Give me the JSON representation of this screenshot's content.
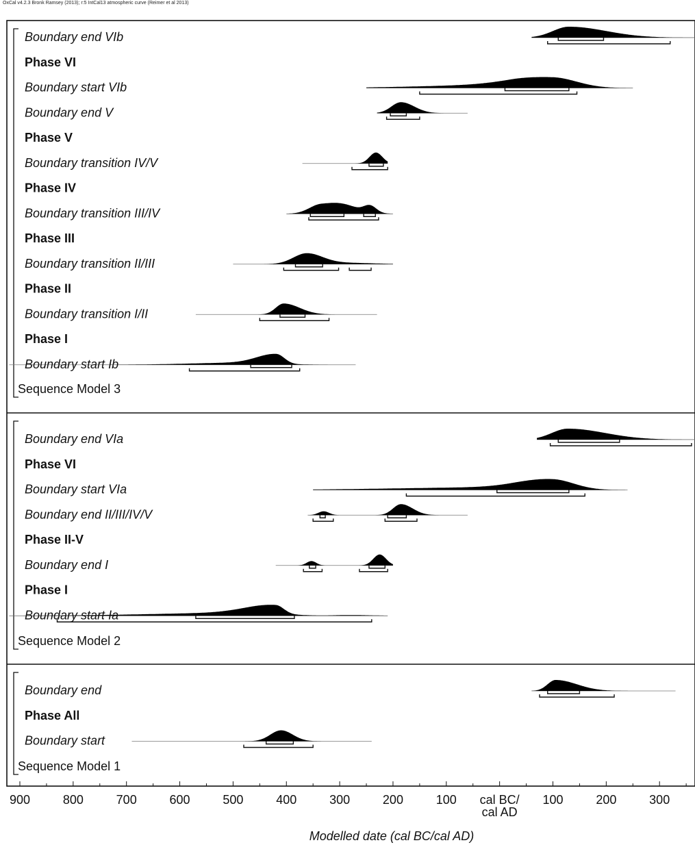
{
  "header_note": "OxCal v4.2.3 Bronk Ramsey (2013); r:5 IntCal13 atmospheric curve (Reimer et al 2013)",
  "chart_data": {
    "type": "ridgeline",
    "xlabel": "Modelled date (cal BC/cal AD)",
    "xlim": [
      -920,
      360
    ],
    "x_ticks": [
      {
        "value": -900,
        "label": "900"
      },
      {
        "value": -800,
        "label": "800"
      },
      {
        "value": -700,
        "label": "700"
      },
      {
        "value": -600,
        "label": "600"
      },
      {
        "value": -500,
        "label": "500"
      },
      {
        "value": -400,
        "label": "400"
      },
      {
        "value": -300,
        "label": "300"
      },
      {
        "value": -200,
        "label": "200"
      },
      {
        "value": -100,
        "label": "100"
      },
      {
        "value": 0,
        "label": "cal BC/\ncal AD"
      },
      {
        "value": 100,
        "label": "100"
      },
      {
        "value": 200,
        "label": "200"
      },
      {
        "value": 300,
        "label": "300"
      }
    ],
    "color": "#000000",
    "models": [
      {
        "name": "Sequence Model 3",
        "rows": [
          {
            "label": "Boundary end VIb",
            "kind": "boundary",
            "dist": {
              "range": [
                60,
                380
              ],
              "peaks": [
                {
                  "mu": 130,
                  "left": 30,
                  "right": 70,
                  "h": 1
                }
              ]
            },
            "hpd68": [
              [
                110,
                195
              ]
            ],
            "hpd95": [
              [
                90,
                320
              ]
            ]
          },
          {
            "label": "Phase VI",
            "kind": "phase"
          },
          {
            "label": "Boundary start VIb",
            "kind": "boundary",
            "dist": {
              "range": [
                -250,
                250
              ],
              "peaks": [
                {
                  "mu": 100,
                  "left": 70,
                  "right": 45,
                  "h": 1
                },
                {
                  "mu": 20,
                  "left": 150,
                  "right": 40,
                  "h": 0.3
                }
              ]
            },
            "hpd68": [
              [
                10,
                130
              ]
            ],
            "hpd95": [
              [
                -150,
                145
              ]
            ]
          },
          {
            "label": "Boundary end V",
            "kind": "boundary",
            "dist": {
              "range": [
                -230,
                -60
              ],
              "peaks": [
                {
                  "mu": -185,
                  "left": 18,
                  "right": 25,
                  "h": 1
                }
              ]
            },
            "hpd68": [
              [
                -205,
                -175
              ]
            ],
            "hpd95": [
              [
                -212,
                -150
              ]
            ]
          },
          {
            "label": "Phase V",
            "kind": "phase"
          },
          {
            "label": "Boundary transition IV/V",
            "kind": "boundary",
            "dist": {
              "range": [
                -370,
                -210
              ],
              "peaks": [
                {
                  "mu": -232,
                  "left": 12,
                  "right": 12,
                  "h": 1
                }
              ]
            },
            "hpd68": [
              [
                -245,
                -218
              ]
            ],
            "hpd95": [
              [
                -277,
                -210
              ]
            ]
          },
          {
            "label": "Phase IV",
            "kind": "phase"
          },
          {
            "label": "Boundary transition III/IV",
            "kind": "boundary",
            "dist": {
              "range": [
                -400,
                -200
              ],
              "peaks": [
                {
                  "mu": -335,
                  "left": 22,
                  "right": 45,
                  "h": 1
                },
                {
                  "mu": -243,
                  "left": 12,
                  "right": 12,
                  "h": 0.75
                },
                {
                  "mu": -290,
                  "left": 25,
                  "right": 25,
                  "h": 0.45
                }
              ]
            },
            "hpd68": [
              [
                -355,
                -292
              ],
              [
                -255,
                -233
              ]
            ],
            "hpd95": [
              [
                -358,
                -227
              ]
            ]
          },
          {
            "label": "Phase III",
            "kind": "phase"
          },
          {
            "label": "Boundary transition II/III",
            "kind": "boundary",
            "dist": {
              "range": [
                -500,
                -200
              ],
              "peaks": [
                {
                  "mu": -362,
                  "left": 25,
                  "right": 30,
                  "h": 1
                },
                {
                  "mu": -285,
                  "left": 40,
                  "right": 50,
                  "h": 0.12
                }
              ]
            },
            "hpd68": [
              [
                -383,
                -332
              ]
            ],
            "hpd95": [
              [
                -405,
                -302
              ],
              [
                -282,
                -241
              ]
            ]
          },
          {
            "label": "Phase II",
            "kind": "phase"
          },
          {
            "label": "Boundary transition I/II",
            "kind": "boundary",
            "dist": {
              "range": [
                -570,
                -230
              ],
              "peaks": [
                {
                  "mu": -405,
                  "left": 15,
                  "right": 30,
                  "h": 1
                }
              ]
            },
            "hpd68": [
              [
                -412,
                -365
              ]
            ],
            "hpd95": [
              [
                -450,
                -320
              ]
            ]
          },
          {
            "label": "Phase I",
            "kind": "phase"
          },
          {
            "label": "Boundary start Ib",
            "kind": "boundary",
            "dist": {
              "range": [
                -920,
                -270
              ],
              "peaks": [
                {
                  "mu": -419,
                  "left": 35,
                  "right": 15,
                  "h": 1
                },
                {
                  "mu": -480,
                  "left": 100,
                  "right": 60,
                  "h": 0.22
                }
              ]
            },
            "hpd68": [
              [
                -467,
                -390
              ]
            ],
            "hpd95": [
              [
                -582,
                -375
              ]
            ]
          }
        ]
      },
      {
        "name": "Sequence Model 2",
        "rows": [
          {
            "label": "Boundary end VIa",
            "kind": "boundary",
            "dist": {
              "range": [
                70,
                380
              ],
              "peaks": [
                {
                  "mu": 128,
                  "left": 30,
                  "right": 70,
                  "h": 1
                }
              ]
            },
            "hpd68": [
              [
                110,
                225
              ]
            ],
            "hpd95": [
              [
                95,
                360
              ]
            ]
          },
          {
            "label": "Phase VI",
            "kind": "phase"
          },
          {
            "label": "Boundary start VIa",
            "kind": "boundary",
            "dist": {
              "range": [
                -350,
                240
              ],
              "peaks": [
                {
                  "mu": 100,
                  "left": 60,
                  "right": 40,
                  "h": 1
                },
                {
                  "mu": 20,
                  "left": 200,
                  "right": 60,
                  "h": 0.28
                }
              ]
            },
            "hpd68": [
              [
                -5,
                130
              ]
            ],
            "hpd95": [
              [
                -175,
                160
              ]
            ]
          },
          {
            "label": "Boundary end II/III/IV/V",
            "kind": "boundary",
            "dist": {
              "range": [
                -360,
                -60
              ],
              "peaks": [
                {
                  "mu": -185,
                  "left": 15,
                  "right": 22,
                  "h": 1
                },
                {
                  "mu": -330,
                  "left": 10,
                  "right": 10,
                  "h": 0.35
                }
              ]
            },
            "hpd68": [
              [
                -337,
                -327
              ],
              [
                -210,
                -175
              ]
            ],
            "hpd95": [
              [
                -350,
                -312
              ],
              [
                -215,
                -155
              ]
            ]
          },
          {
            "label": "Phase II-V",
            "kind": "phase"
          },
          {
            "label": "Boundary end I",
            "kind": "boundary",
            "dist": {
              "range": [
                -420,
                -200
              ],
              "peaks": [
                {
                  "mu": -225,
                  "left": 12,
                  "right": 12,
                  "h": 1
                },
                {
                  "mu": -353,
                  "left": 9,
                  "right": 9,
                  "h": 0.4
                }
              ]
            },
            "hpd68": [
              [
                -357,
                -345
              ],
              [
                -245,
                -215
              ]
            ],
            "hpd95": [
              [
                -368,
                -333
              ],
              [
                -263,
                -210
              ]
            ]
          },
          {
            "label": "Phase I",
            "kind": "phase"
          },
          {
            "label": "Boundary start Ia",
            "kind": "boundary",
            "dist": {
              "range": [
                -920,
                -210
              ],
              "peaks": [
                {
                  "mu": -420,
                  "left": 55,
                  "right": 15,
                  "h": 1
                },
                {
                  "mu": -470,
                  "left": 170,
                  "right": 60,
                  "h": 0.35
                },
                {
                  "mu": -280,
                  "left": 30,
                  "right": 40,
                  "h": 0.08
                }
              ]
            },
            "hpd68": [
              [
                -570,
                -385
              ]
            ],
            "hpd95": [
              [
                -830,
                -240
              ]
            ]
          }
        ]
      },
      {
        "name": "Sequence Model 1",
        "rows": [
          {
            "label": "Boundary end",
            "kind": "boundary",
            "dist": {
              "range": [
                60,
                330
              ],
              "peaks": [
                {
                  "mu": 105,
                  "left": 15,
                  "right": 40,
                  "h": 1
                }
              ]
            },
            "hpd68": [
              [
                90,
                150
              ]
            ],
            "hpd95": [
              [
                75,
                215
              ]
            ]
          },
          {
            "label": "Phase All",
            "kind": "phase"
          },
          {
            "label": "Boundary start",
            "kind": "boundary",
            "dist": {
              "range": [
                -690,
                -240
              ],
              "peaks": [
                {
                  "mu": -410,
                  "left": 20,
                  "right": 22,
                  "h": 1
                }
              ]
            },
            "hpd68": [
              [
                -438,
                -387
              ]
            ],
            "hpd95": [
              [
                -480,
                -350
              ]
            ]
          }
        ]
      }
    ]
  }
}
